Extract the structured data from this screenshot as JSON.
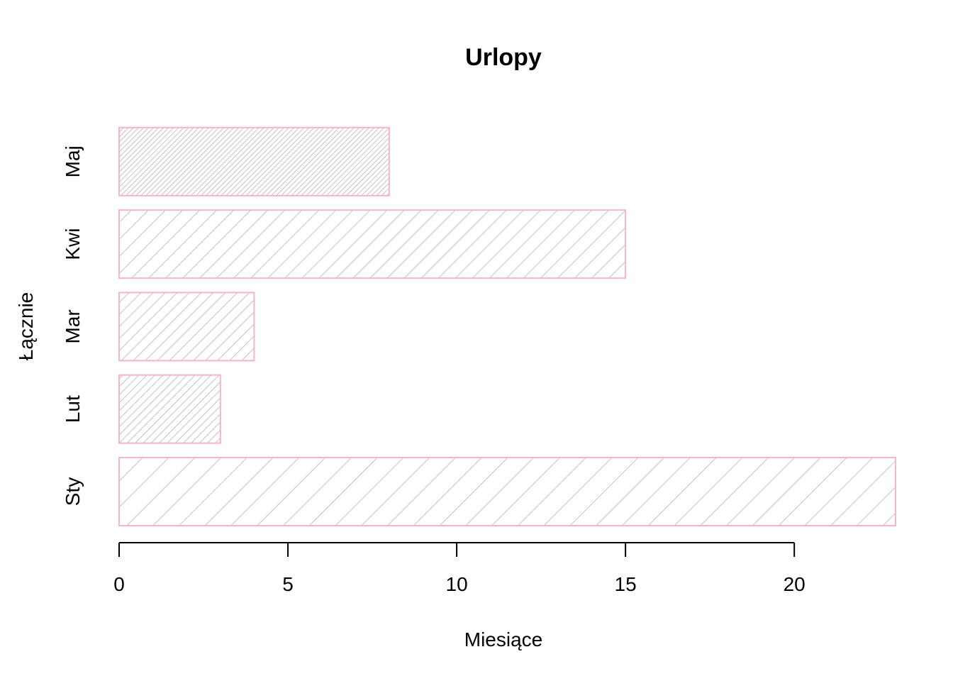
{
  "chart_data": {
    "type": "bar",
    "orientation": "horizontal",
    "title": "Urlopy",
    "xlabel": "Miesiące",
    "ylabel": "Łącznie",
    "categories": [
      "Sty",
      "Lut",
      "Mar",
      "Kwi",
      "Maj"
    ],
    "values": [
      23,
      3,
      4,
      15,
      8
    ],
    "xlim": [
      0,
      23
    ],
    "xticks": [
      "0",
      "5",
      "10",
      "15",
      "20"
    ],
    "grid": false,
    "bar_fill": "hatched",
    "colors": {
      "bar_border": "#f4b6c2",
      "hatch": "#b3b3b3",
      "axis": "#000000",
      "background": "#ffffff"
    }
  }
}
